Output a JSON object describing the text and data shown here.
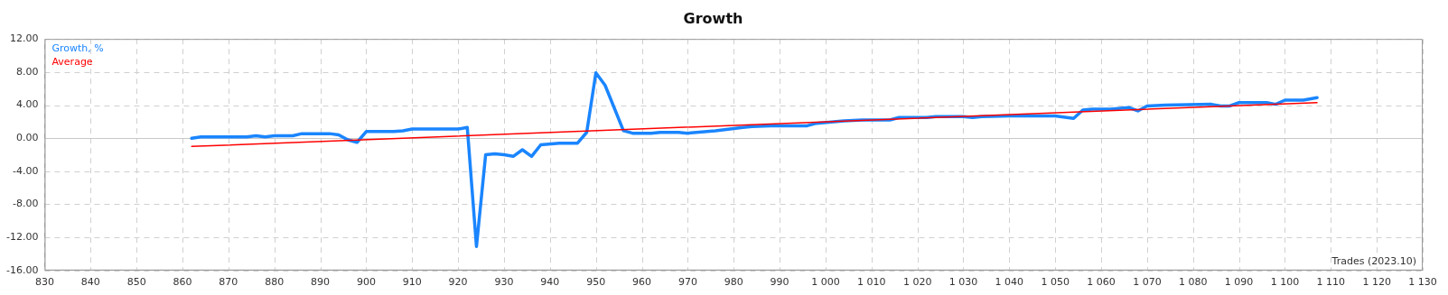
{
  "chart_data": {
    "type": "line",
    "title": "Growth",
    "xlabel": "Trades (2023.10)",
    "xlim": [
      830,
      1130
    ],
    "xticks": [
      830,
      840,
      850,
      860,
      870,
      880,
      890,
      900,
      910,
      920,
      930,
      940,
      950,
      960,
      970,
      980,
      990,
      {
        "value": 1000,
        "label": "1 000"
      },
      {
        "value": 1010,
        "label": "1 010"
      },
      {
        "value": 1020,
        "label": "1 020"
      },
      {
        "value": 1030,
        "label": "1 030"
      },
      {
        "value": 1040,
        "label": "1 040"
      },
      {
        "value": 1050,
        "label": "1 050"
      },
      {
        "value": 1060,
        "label": "1 060"
      },
      {
        "value": 1070,
        "label": "1 070"
      },
      {
        "value": 1080,
        "label": "1 080"
      },
      {
        "value": 1090,
        "label": "1 090"
      },
      {
        "value": 1100,
        "label": "1 100"
      },
      {
        "value": 1110,
        "label": "1 110"
      },
      {
        "value": 1120,
        "label": "1 120"
      },
      {
        "value": 1130,
        "label": "1 130"
      }
    ],
    "ylim": [
      -16,
      12
    ],
    "yticks": [
      {
        "value": -16,
        "label": "-16.00"
      },
      {
        "value": -12,
        "label": "-12.00"
      },
      {
        "value": -8,
        "label": "-8.00"
      },
      {
        "value": -4,
        "label": "-4.00"
      },
      {
        "value": 0,
        "label": "0.00"
      },
      {
        "value": 4,
        "label": "4.00"
      },
      {
        "value": 8,
        "label": "8.00"
      },
      {
        "value": 12,
        "label": "12.00"
      }
    ],
    "grid": true,
    "legend": "top left",
    "marker": "none",
    "line_style": "solid",
    "series": [
      {
        "name": "Growth, %",
        "color": "#1a85ff",
        "x": [
          862,
          864,
          874,
          876,
          878,
          880,
          884,
          886,
          892,
          894,
          896,
          898,
          900,
          906,
          908,
          910,
          920,
          922,
          924,
          926,
          928,
          930,
          932,
          934,
          936,
          938,
          942,
          946,
          948,
          950,
          952,
          956,
          958,
          962,
          964,
          968,
          970,
          976,
          982,
          984,
          988,
          996,
          998,
          1004,
          1008,
          1014,
          1016,
          1022,
          1024,
          1030,
          1032,
          1034,
          1040,
          1050,
          1054,
          1056,
          1058,
          1062,
          1066,
          1068,
          1070,
          1074,
          1084,
          1086,
          1088,
          1090,
          1096,
          1098,
          1100,
          1104,
          1107
        ],
        "values": [
          0.0,
          0.15,
          0.15,
          0.3,
          0.15,
          0.3,
          0.3,
          0.55,
          0.55,
          0.4,
          -0.2,
          -0.5,
          0.8,
          0.8,
          0.9,
          1.1,
          1.1,
          1.3,
          -13.1,
          -2.0,
          -1.9,
          -2.0,
          -2.2,
          -1.4,
          -2.2,
          -0.8,
          -0.6,
          -0.6,
          0.7,
          7.9,
          6.4,
          0.9,
          0.6,
          0.6,
          0.7,
          0.7,
          0.6,
          0.9,
          1.3,
          1.4,
          1.5,
          1.5,
          1.8,
          2.1,
          2.2,
          2.2,
          2.5,
          2.5,
          2.6,
          2.6,
          2.5,
          2.6,
          2.7,
          2.7,
          2.4,
          3.4,
          3.5,
          3.5,
          3.7,
          3.3,
          3.9,
          4.0,
          4.1,
          3.9,
          3.9,
          4.3,
          4.3,
          4.1,
          4.6,
          4.6,
          4.9
        ]
      },
      {
        "name": "Average",
        "color": "#ff0000",
        "x": [
          862,
          1107
        ],
        "values": [
          -1.0,
          4.3
        ]
      }
    ]
  }
}
